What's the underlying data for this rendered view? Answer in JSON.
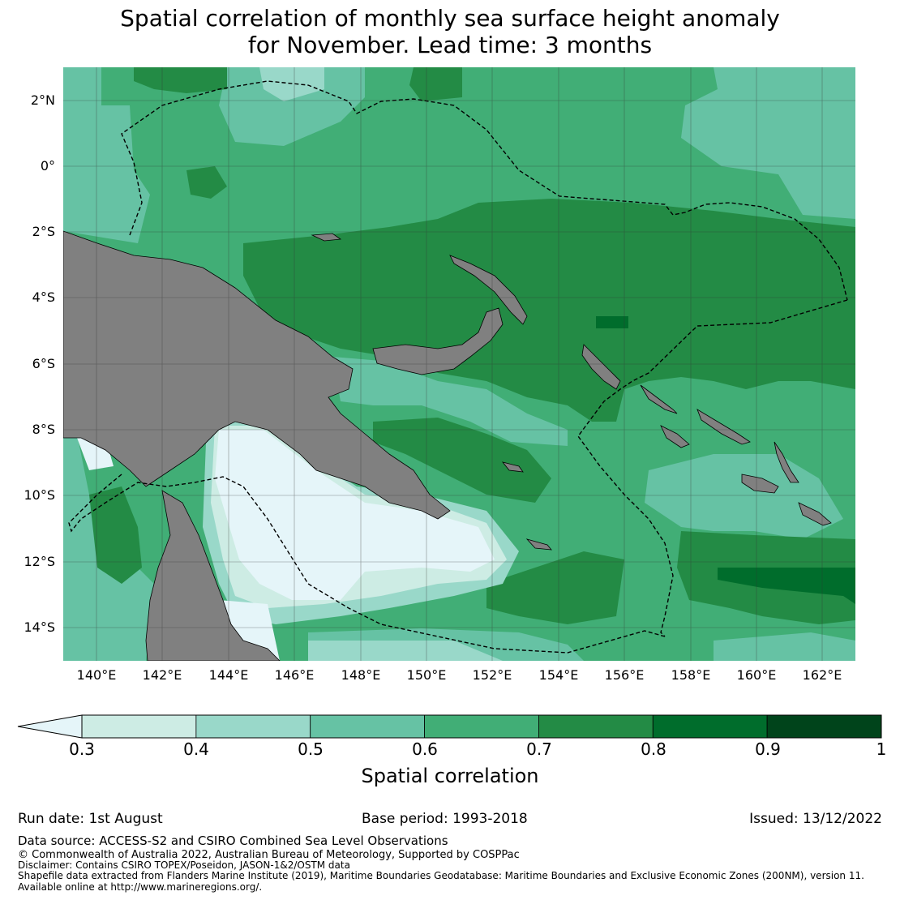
{
  "title": {
    "line1": "Spatial correlation of monthly sea surface height anomaly",
    "line2": "for November. Lead time: 3 months"
  },
  "map": {
    "extent": {
      "lon_min": 139,
      "lon_max": 163,
      "lat_min": -15,
      "lat_max": 3
    },
    "latitude_ticks": [
      {
        "value": 2,
        "label": "2°N"
      },
      {
        "value": 0,
        "label": "0°"
      },
      {
        "value": -2,
        "label": "2°S"
      },
      {
        "value": -4,
        "label": "4°S"
      },
      {
        "value": -6,
        "label": "6°S"
      },
      {
        "value": -8,
        "label": "8°S"
      },
      {
        "value": -10,
        "label": "10°S"
      },
      {
        "value": -12,
        "label": "12°S"
      },
      {
        "value": -14,
        "label": "14°S"
      }
    ],
    "longitude_ticks": [
      {
        "value": 140,
        "label": "140°E"
      },
      {
        "value": 142,
        "label": "142°E"
      },
      {
        "value": 144,
        "label": "144°E"
      },
      {
        "value": 146,
        "label": "146°E"
      },
      {
        "value": 148,
        "label": "148°E"
      },
      {
        "value": 150,
        "label": "150°E"
      },
      {
        "value": 152,
        "label": "152°E"
      },
      {
        "value": 154,
        "label": "154°E"
      },
      {
        "value": 156,
        "label": "156°E"
      },
      {
        "value": 158,
        "label": "158°E"
      },
      {
        "value": 160,
        "label": "160°E"
      },
      {
        "value": 162,
        "label": "162°E"
      }
    ],
    "land_color": "#808080",
    "grid_color": "#333333"
  },
  "colorbar": {
    "label": "Spatial correlation",
    "bins": [
      {
        "from": 0.3,
        "to": 0.4,
        "color": "#cdece4"
      },
      {
        "from": 0.4,
        "to": 0.5,
        "color": "#99d8c9"
      },
      {
        "from": 0.5,
        "to": 0.6,
        "color": "#66c2a4"
      },
      {
        "from": 0.6,
        "to": 0.7,
        "color": "#41ae76"
      },
      {
        "from": 0.7,
        "to": 0.8,
        "color": "#238b45"
      },
      {
        "from": 0.8,
        "to": 0.9,
        "color": "#006d2c"
      },
      {
        "from": 0.9,
        "to": 1.0,
        "color": "#00441b"
      }
    ],
    "under_color": "#e5f5f9",
    "tick_labels": [
      "0.3",
      "0.4",
      "0.5",
      "0.6",
      "0.7",
      "0.8",
      "0.9",
      "1"
    ]
  },
  "footer": {
    "run_date": "Run date: 1st August",
    "base_period": "Base period: 1993-2018",
    "issued": "Issued: 13/12/2022",
    "data_source": "Data source: ACCESS-S2 and CSIRO Combined Sea Level Observations",
    "copyright": "© Commonwealth of Australia 2022, Australian Bureau of Meteorology, Supported by COSPPac",
    "disclaimer": "Disclaimer: Contains CSIRO TOPEX/Poseidon, JASON-1&2/OSTM data",
    "shapefile": "Shapefile data extracted from Flanders Marine Institute (2019), Maritime Boundaries Geodatabase: Maritime Boundaries and Exclusive Economic Zones (200NM), version 11.",
    "available": "Available online at http://www.marineregions.org/."
  }
}
